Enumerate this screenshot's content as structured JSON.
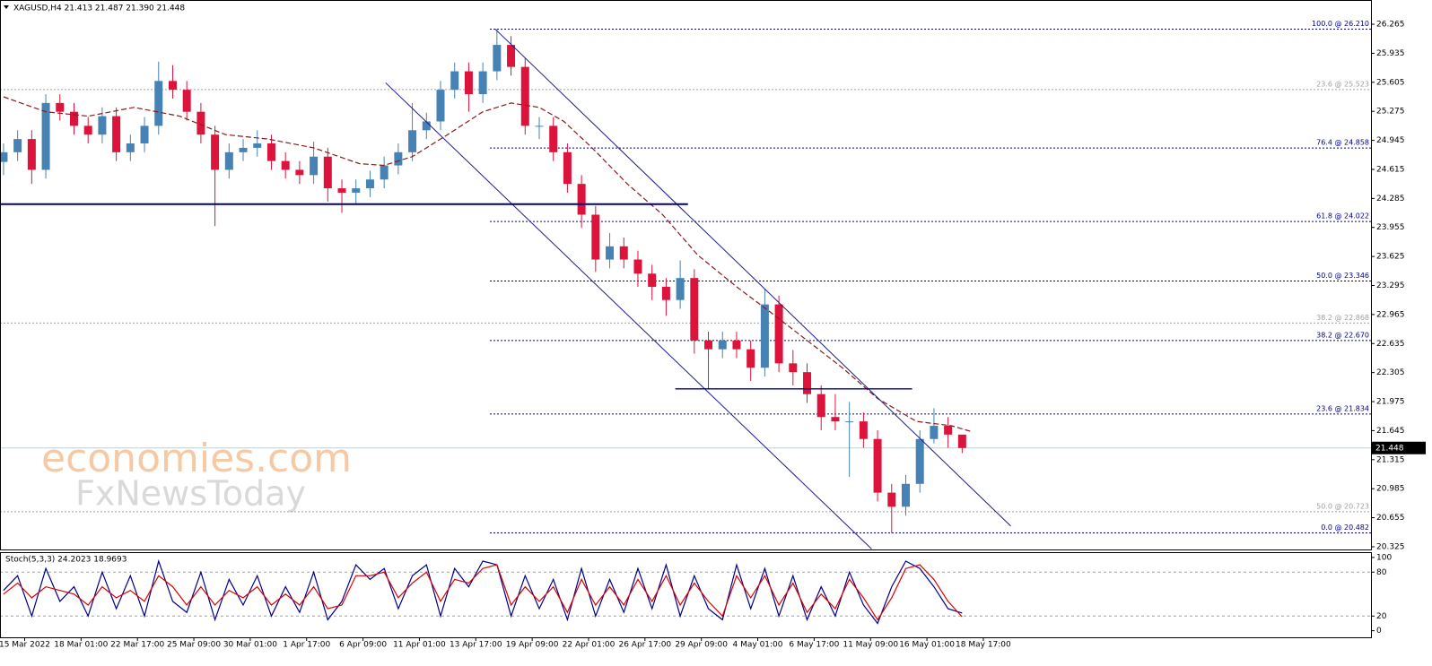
{
  "chart_data": [
    {
      "type": "candlestick",
      "title": "XAGUSD,H4  21.413 21.487 21.390 21.448",
      "xlim": [
        -1,
        388
      ],
      "ylim": [
        20.294,
        26.51
      ],
      "yticks": [
        26.265,
        25.935,
        25.605,
        25.275,
        24.945,
        24.615,
        24.285,
        23.955,
        23.625,
        23.295,
        22.965,
        22.635,
        22.305,
        21.975,
        21.645,
        21.315,
        20.985,
        20.655,
        20.325
      ],
      "xticks": [
        {
          "value": 6,
          "label": "15 Mar 2022"
        },
        {
          "value": 22,
          "label": "18 Mar 01:00"
        },
        {
          "value": 38,
          "label": "22 Mar 17:00"
        },
        {
          "value": 54,
          "label": "25 Mar 09:00"
        },
        {
          "value": 70,
          "label": "30 Mar 01:00"
        },
        {
          "value": 86,
          "label": "1 Apr 17:00"
        },
        {
          "value": 102,
          "label": "6 Apr 09:00"
        },
        {
          "value": 118,
          "label": "11 Apr 01:00"
        },
        {
          "value": 134,
          "label": "13 Apr 17:00"
        },
        {
          "value": 150,
          "label": "19 Apr 09:00"
        },
        {
          "value": 166,
          "label": "22 Apr 01:00"
        },
        {
          "value": 182,
          "label": "26 Apr 17:00"
        },
        {
          "value": 198,
          "label": "29 Apr 09:00"
        },
        {
          "value": 214,
          "label": "4 May 01:00"
        },
        {
          "value": 230,
          "label": "6 May 17:00"
        },
        {
          "value": 246,
          "label": "11 May 09:00"
        },
        {
          "value": 262,
          "label": "16 May 01:00"
        },
        {
          "value": 278,
          "label": "18 May 17:00"
        }
      ],
      "up_color": "#4682b4",
      "down_color": "#dc143c",
      "candles": {
        "x": [
          0,
          4,
          8,
          12,
          16,
          20,
          24,
          28,
          32,
          36,
          40,
          44,
          48,
          52,
          56,
          60,
          64,
          68,
          72,
          76,
          80,
          84,
          88,
          92,
          96,
          100,
          104,
          108,
          112,
          116,
          120,
          124,
          128,
          132,
          136,
          140,
          144,
          148,
          152,
          156,
          160,
          164,
          168,
          172,
          176,
          180,
          184,
          188,
          192,
          196,
          200,
          204,
          208,
          212,
          216,
          220,
          224,
          228,
          232,
          236,
          240,
          244,
          248,
          252,
          256,
          260,
          264,
          268,
          272
        ],
        "open": [
          24.7,
          24.81,
          24.96,
          24.61,
          25.37,
          25.27,
          25.11,
          25.01,
          25.22,
          24.81,
          24.91,
          25.11,
          25.62,
          25.52,
          25.27,
          25.01,
          24.61,
          24.81,
          24.86,
          24.91,
          24.71,
          24.61,
          24.55,
          24.76,
          24.4,
          24.35,
          24.4,
          24.5,
          24.66,
          24.81,
          25.06,
          25.16,
          25.52,
          25.73,
          25.47,
          25.73,
          26.03,
          25.78,
          25.11,
          25.11,
          24.81,
          24.45,
          24.1,
          23.59,
          23.74,
          23.59,
          23.43,
          23.28,
          23.13,
          23.38,
          22.67,
          22.57,
          22.67,
          22.57,
          22.36,
          23.08,
          22.41,
          22.31,
          22.06,
          21.8,
          21.75,
          21.75,
          21.55,
          20.94,
          20.78,
          21.04,
          21.55,
          21.7,
          21.6
        ],
        "high": [
          24.91,
          25.06,
          25.06,
          25.47,
          25.47,
          25.37,
          25.21,
          25.32,
          25.32,
          25.01,
          25.21,
          25.84,
          25.8,
          25.62,
          25.37,
          25.11,
          24.91,
          24.96,
          25.06,
          25.01,
          24.81,
          24.71,
          24.93,
          24.86,
          24.5,
          24.5,
          24.6,
          24.76,
          24.91,
          25.37,
          25.26,
          25.62,
          25.83,
          25.83,
          25.83,
          26.21,
          26.13,
          25.88,
          25.21,
          25.21,
          24.91,
          24.55,
          24.2,
          23.89,
          23.84,
          23.69,
          23.53,
          23.38,
          23.58,
          23.48,
          22.77,
          22.77,
          22.77,
          22.67,
          23.26,
          23.18,
          22.56,
          22.41,
          22.16,
          22.06,
          21.97,
          21.85,
          21.65,
          21.04,
          21.14,
          21.65,
          21.9,
          21.8,
          21.487
        ],
        "low": [
          24.55,
          24.71,
          24.45,
          24.51,
          25.17,
          25.01,
          24.91,
          24.91,
          24.71,
          24.71,
          24.81,
          25.01,
          25.42,
          25.17,
          24.91,
          23.97,
          24.51,
          24.71,
          24.76,
          24.61,
          24.51,
          24.45,
          24.45,
          24.25,
          24.12,
          24.22,
          24.3,
          24.4,
          24.56,
          24.71,
          24.96,
          25.06,
          25.42,
          25.27,
          25.37,
          25.63,
          25.68,
          25.01,
          24.96,
          24.71,
          24.35,
          23.95,
          23.45,
          23.49,
          23.49,
          23.28,
          23.13,
          22.95,
          23.03,
          22.52,
          22.12,
          22.47,
          22.47,
          22.21,
          22.26,
          22.31,
          22.16,
          21.96,
          21.65,
          21.65,
          21.12,
          21.45,
          20.84,
          20.48,
          20.68,
          20.94,
          21.5,
          21.45,
          21.39
        ],
        "close": [
          24.81,
          24.96,
          24.61,
          25.37,
          25.27,
          25.11,
          25.01,
          25.22,
          24.81,
          24.91,
          25.11,
          25.62,
          25.52,
          25.27,
          25.01,
          24.61,
          24.81,
          24.86,
          24.91,
          24.71,
          24.61,
          24.55,
          24.76,
          24.4,
          24.35,
          24.4,
          24.5,
          24.66,
          24.81,
          25.06,
          25.16,
          25.52,
          25.73,
          25.47,
          25.73,
          26.03,
          25.78,
          25.11,
          25.11,
          24.81,
          24.45,
          24.1,
          23.59,
          23.74,
          23.59,
          23.43,
          23.28,
          23.13,
          23.38,
          22.67,
          22.57,
          22.67,
          22.57,
          22.36,
          23.08,
          22.41,
          22.31,
          22.06,
          21.8,
          21.75,
          21.75,
          21.55,
          20.94,
          20.78,
          21.04,
          21.55,
          21.7,
          21.6,
          21.448
        ]
      },
      "ma": {
        "color": "#8b1a1a",
        "x": [
          0,
          12,
          24,
          37,
          50,
          63,
          75,
          88,
          101,
          108,
          116,
          126,
          136,
          144,
          152,
          159,
          167,
          177,
          187,
          197,
          208,
          218,
          228,
          238,
          248,
          259,
          269,
          275
        ],
        "values": [
          25.44,
          25.27,
          25.22,
          25.32,
          25.22,
          25.01,
          24.96,
          24.86,
          24.68,
          24.66,
          24.76,
          25.01,
          25.27,
          25.37,
          25.32,
          25.16,
          24.86,
          24.45,
          24.1,
          23.64,
          23.28,
          22.98,
          22.67,
          22.36,
          22.01,
          21.75,
          21.7,
          21.63
        ]
      },
      "fib_levels": [
        {
          "label": "100.0 @ 26.210",
          "value": 26.21,
          "color": "#00008b",
          "from": 138
        },
        {
          "label": "23.6 @ 25.523",
          "value": 25.523,
          "color": "#a0a0a0",
          "from": -1
        },
        {
          "label": "76.4 @ 24.858",
          "value": 24.858,
          "color": "#00008b",
          "from": 138
        },
        {
          "label": "61.8 @ 24.022",
          "value": 24.022,
          "color": "#00008b",
          "from": 138
        },
        {
          "label": "50.0 @ 23.346",
          "value": 23.346,
          "color": "#00008b",
          "from": 138
        },
        {
          "label": "38.2 @ 22.868",
          "value": 22.868,
          "color": "#a0a0a0",
          "from": -1
        },
        {
          "label": "38.2 @ 22.670",
          "value": 22.67,
          "color": "#00008b",
          "from": 138
        },
        {
          "label": "23.6 @ 21.834",
          "value": 21.834,
          "color": "#00008b",
          "from": 138
        },
        {
          "label": "50.0 @ 20.723",
          "value": 20.723,
          "color": "#a0a0a0",
          "from": -1
        },
        {
          "label": "0.0 @ 20.482",
          "value": 20.482,
          "color": "#00008b",
          "from": 138
        }
      ],
      "lines": [
        {
          "x": [
            139.5,
            285.8
          ],
          "y": [
            26.21,
            20.56
          ],
          "color": "#1c1c8c",
          "width": 1
        },
        {
          "x": [
            108.4,
            246.3
          ],
          "y": [
            25.6,
            20.3
          ],
          "color": "#1c1c8c",
          "width": 1
        },
        {
          "x": [
            -1,
            194.2
          ],
          "y": [
            24.22,
            24.22
          ],
          "color": "#000080",
          "width": 2
        },
        {
          "x": [
            190.6,
            257.8
          ],
          "y": [
            22.12,
            22.12
          ],
          "color": "#000080",
          "width": 1.3
        }
      ],
      "last": 21.448,
      "last_color": "#a6d8e8",
      "watermark": [
        "economies.com",
        "FxNewsToday"
      ]
    },
    {
      "type": "line",
      "title": "Stoch(5,3,3) 24.2023 18.9693",
      "xlim": [
        -1,
        388
      ],
      "ylim": [
        -9,
        106
      ],
      "yticks": [
        100,
        80,
        20,
        0
      ],
      "levels": [
        80,
        20
      ],
      "series": [
        {
          "color": "#00008b",
          "x": [
            0,
            4,
            8,
            12,
            16,
            20,
            24,
            28,
            32,
            36,
            40,
            44,
            48,
            52,
            56,
            60,
            64,
            68,
            72,
            76,
            80,
            84,
            88,
            92,
            96,
            100,
            104,
            108,
            112,
            116,
            120,
            124,
            128,
            132,
            136,
            140,
            144,
            148,
            152,
            156,
            160,
            164,
            168,
            172,
            176,
            180,
            184,
            188,
            192,
            196,
            200,
            204,
            208,
            212,
            216,
            220,
            224,
            228,
            232,
            236,
            240,
            244,
            248,
            252,
            256,
            260,
            264,
            268,
            272
          ],
          "values": [
            55,
            75,
            20,
            85,
            40,
            60,
            20,
            80,
            30,
            75,
            20,
            95,
            40,
            25,
            80,
            15,
            70,
            35,
            75,
            20,
            60,
            25,
            80,
            15,
            40,
            90,
            70,
            85,
            30,
            75,
            90,
            20,
            85,
            60,
            95,
            90,
            20,
            75,
            30,
            70,
            15,
            85,
            20,
            70,
            25,
            85,
            30,
            90,
            20,
            75,
            30,
            15,
            90,
            30,
            85,
            20,
            75,
            15,
            60,
            20,
            80,
            35,
            10,
            60,
            95,
            85,
            60,
            30,
            24.2023
          ]
        },
        {
          "color": "#e00000",
          "x": [
            0,
            4,
            8,
            12,
            16,
            20,
            24,
            28,
            32,
            36,
            40,
            44,
            48,
            52,
            56,
            60,
            64,
            68,
            72,
            76,
            80,
            84,
            88,
            92,
            96,
            100,
            104,
            108,
            112,
            116,
            120,
            124,
            128,
            132,
            136,
            140,
            144,
            148,
            152,
            156,
            160,
            164,
            168,
            172,
            176,
            180,
            184,
            188,
            192,
            196,
            200,
            204,
            208,
            212,
            216,
            220,
            224,
            228,
            232,
            236,
            240,
            244,
            248,
            252,
            256,
            260,
            264,
            268,
            272
          ],
          "values": [
            50,
            65,
            45,
            60,
            55,
            50,
            35,
            60,
            45,
            55,
            40,
            75,
            60,
            35,
            60,
            35,
            55,
            45,
            60,
            35,
            50,
            35,
            60,
            30,
            35,
            75,
            75,
            80,
            45,
            65,
            80,
            40,
            70,
            65,
            85,
            90,
            35,
            60,
            40,
            60,
            25,
            70,
            35,
            60,
            35,
            70,
            40,
            75,
            35,
            65,
            40,
            20,
            75,
            45,
            75,
            35,
            65,
            25,
            50,
            30,
            70,
            45,
            15,
            45,
            85,
            90,
            70,
            40,
            18.9693
          ]
        }
      ]
    }
  ]
}
